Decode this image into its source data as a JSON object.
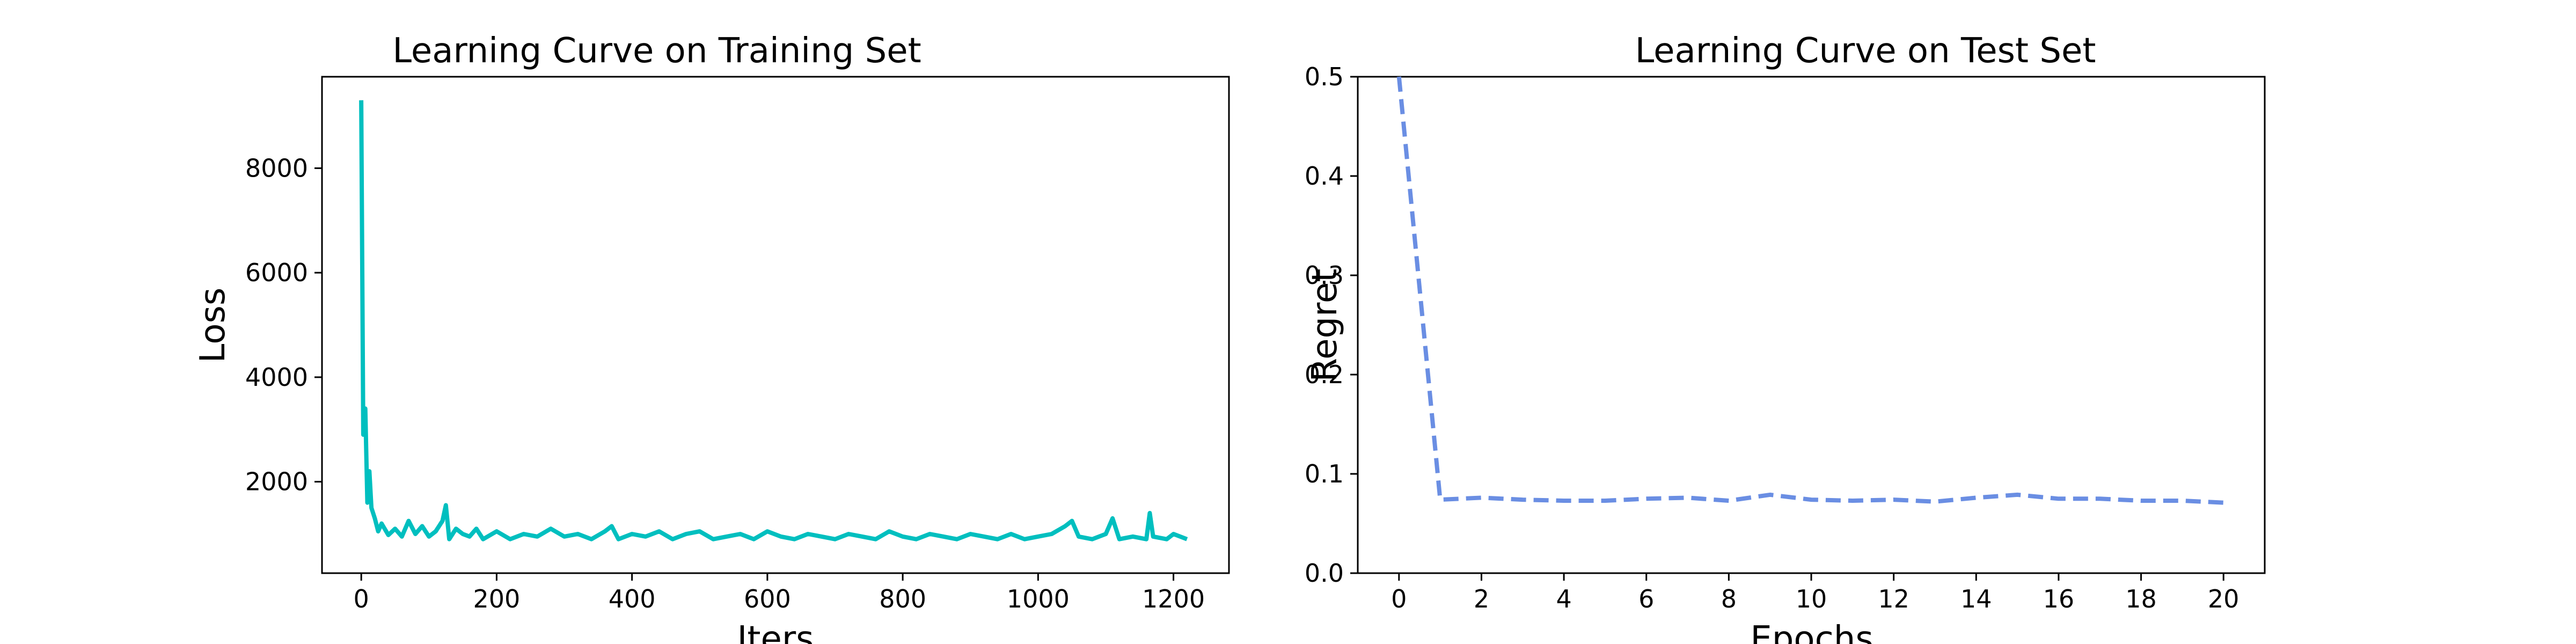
{
  "chart_data": [
    {
      "type": "line",
      "title": "Learning Curve on Training Set",
      "xlabel": "Iters",
      "ylabel": "Loss",
      "xlim": [
        -58,
        1282
      ],
      "ylim": [
        250,
        9750
      ],
      "xticks": [
        0,
        200,
        400,
        600,
        800,
        1000,
        1200
      ],
      "yticks": [
        2000,
        4000,
        6000,
        8000
      ],
      "grid": false,
      "series": [
        {
          "color": "#00bfbf",
          "linestyle": "solid",
          "x": [
            0,
            3,
            6,
            9,
            12,
            15,
            20,
            25,
            30,
            40,
            50,
            60,
            70,
            80,
            90,
            100,
            110,
            120,
            125,
            130,
            140,
            150,
            160,
            170,
            180,
            200,
            220,
            240,
            260,
            280,
            300,
            320,
            340,
            360,
            370,
            380,
            400,
            420,
            440,
            460,
            480,
            500,
            520,
            540,
            560,
            580,
            600,
            620,
            640,
            660,
            680,
            700,
            720,
            740,
            760,
            780,
            800,
            820,
            840,
            860,
            880,
            900,
            920,
            940,
            960,
            980,
            1000,
            1020,
            1040,
            1050,
            1060,
            1080,
            1100,
            1110,
            1120,
            1140,
            1160,
            1165,
            1170,
            1190,
            1200,
            1220
          ],
          "y": [
            9300,
            2900,
            3400,
            1600,
            2200,
            1500,
            1300,
            1050,
            1200,
            980,
            1100,
            950,
            1250,
            1000,
            1150,
            950,
            1050,
            1250,
            1550,
            900,
            1100,
            1000,
            950,
            1100,
            900,
            1050,
            900,
            1000,
            950,
            1100,
            950,
            1000,
            900,
            1050,
            1150,
            900,
            1000,
            950,
            1050,
            900,
            1000,
            1050,
            900,
            950,
            1000,
            900,
            1050,
            950,
            900,
            1000,
            950,
            900,
            1000,
            950,
            900,
            1050,
            950,
            900,
            1000,
            950,
            900,
            1000,
            950,
            900,
            1000,
            900,
            950,
            1000,
            1150,
            1250,
            950,
            900,
            1000,
            1300,
            900,
            950,
            900,
            1400,
            950,
            900,
            1000,
            900
          ]
        }
      ]
    },
    {
      "type": "line",
      "title": "Learning Curve on Test Set",
      "xlabel": "Epochs",
      "ylabel": "Regret",
      "xlim": [
        -1,
        21
      ],
      "ylim": [
        0,
        0.5
      ],
      "xticks": [
        0,
        2,
        4,
        6,
        8,
        10,
        12,
        14,
        16,
        18,
        20
      ],
      "yticks": [
        0.0,
        0.1,
        0.2,
        0.3,
        0.4,
        0.5
      ],
      "grid": false,
      "series": [
        {
          "color": "#6a8ee3",
          "linestyle": "dashed",
          "x": [
            0,
            1,
            2,
            3,
            4,
            5,
            6,
            7,
            8,
            9,
            10,
            11,
            12,
            13,
            14,
            15,
            16,
            17,
            18,
            19,
            20
          ],
          "y": [
            0.5,
            0.074,
            0.076,
            0.074,
            0.073,
            0.073,
            0.075,
            0.076,
            0.073,
            0.079,
            0.074,
            0.073,
            0.074,
            0.072,
            0.076,
            0.079,
            0.075,
            0.075,
            0.073,
            0.073,
            0.071
          ]
        }
      ]
    }
  ]
}
